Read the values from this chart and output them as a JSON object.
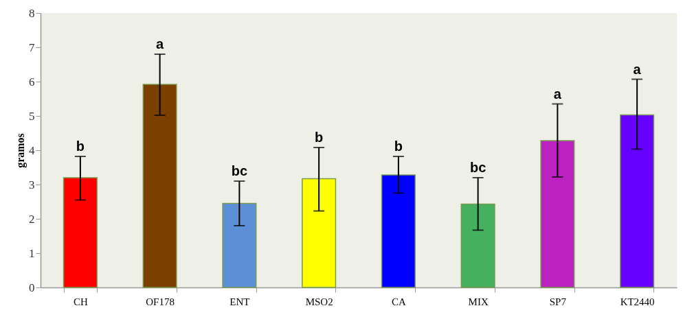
{
  "chart_data": {
    "type": "bar",
    "ylabel": "gramos",
    "categories": [
      "CH",
      "OF178",
      "ENT",
      "MSO2",
      "CA",
      "MIX",
      "SP7",
      "KT2440"
    ],
    "values": [
      3.2,
      5.92,
      2.45,
      3.17,
      3.28,
      2.43,
      4.28,
      5.03
    ],
    "colors": [
      "#ff0000",
      "#7b3f00",
      "#5b8fd6",
      "#ffff00",
      "#0000ff",
      "#45b060",
      "#bb22c0",
      "#6600ff"
    ],
    "errors": [
      [
        2.55,
        3.82
      ],
      [
        5.02,
        6.8
      ],
      [
        1.8,
        3.1
      ],
      [
        2.23,
        4.08
      ],
      [
        2.75,
        3.82
      ],
      [
        1.67,
        3.2
      ],
      [
        3.22,
        5.35
      ],
      [
        4.03,
        6.07
      ]
    ],
    "ylim": [
      0,
      8
    ],
    "yticks": [
      0,
      1,
      2,
      3,
      4,
      5,
      6,
      7,
      8
    ],
    "grid": false,
    "annotations": [
      {
        "text": "b",
        "x": "CH",
        "y": 3.82
      },
      {
        "text": "a",
        "x": "OF178",
        "y": 6.8
      },
      {
        "text": "bc",
        "x": "ENT",
        "y": 3.1
      },
      {
        "text": "b",
        "x": "MSO2",
        "y": 4.08
      },
      {
        "text": "b",
        "x": "CA",
        "y": 3.82
      },
      {
        "text": "bc",
        "x": "MIX",
        "y": 3.2
      },
      {
        "text": "a",
        "x": "SP7",
        "y": 5.35
      },
      {
        "text": "a",
        "x": "KT2440",
        "y": 6.07
      }
    ]
  }
}
